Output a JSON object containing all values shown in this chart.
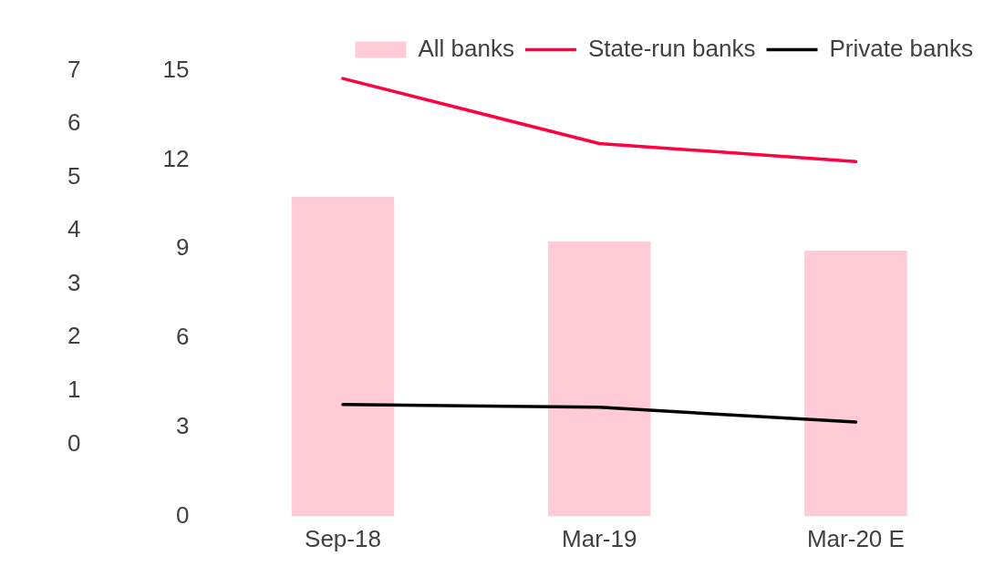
{
  "chart_data": {
    "type": "bar",
    "categories": [
      "Sep-18",
      "Mar-19",
      "Mar-20 E"
    ],
    "series": [
      {
        "name": "All banks",
        "color": "#fecbd7",
        "values": [
          10.75,
          9.26,
          8.94
        ]
      },
      {
        "name": "State-run banks",
        "type": "line",
        "color": "#ff0040",
        "values": [
          14.74,
          12.55,
          11.94
        ]
      },
      {
        "name": "Private banks",
        "type": "line",
        "color": "#000000",
        "values": [
          3.76,
          3.67,
          3.17
        ]
      }
    ],
    "ylim": [
      0,
      15
    ],
    "yticks": [
      0,
      3,
      6,
      9,
      12,
      15
    ],
    "y2lim": [
      -1.35,
      7
    ],
    "y2ticks": [
      0,
      1,
      2,
      3,
      4,
      5,
      6,
      7
    ],
    "grid": false,
    "legend": "top right"
  }
}
